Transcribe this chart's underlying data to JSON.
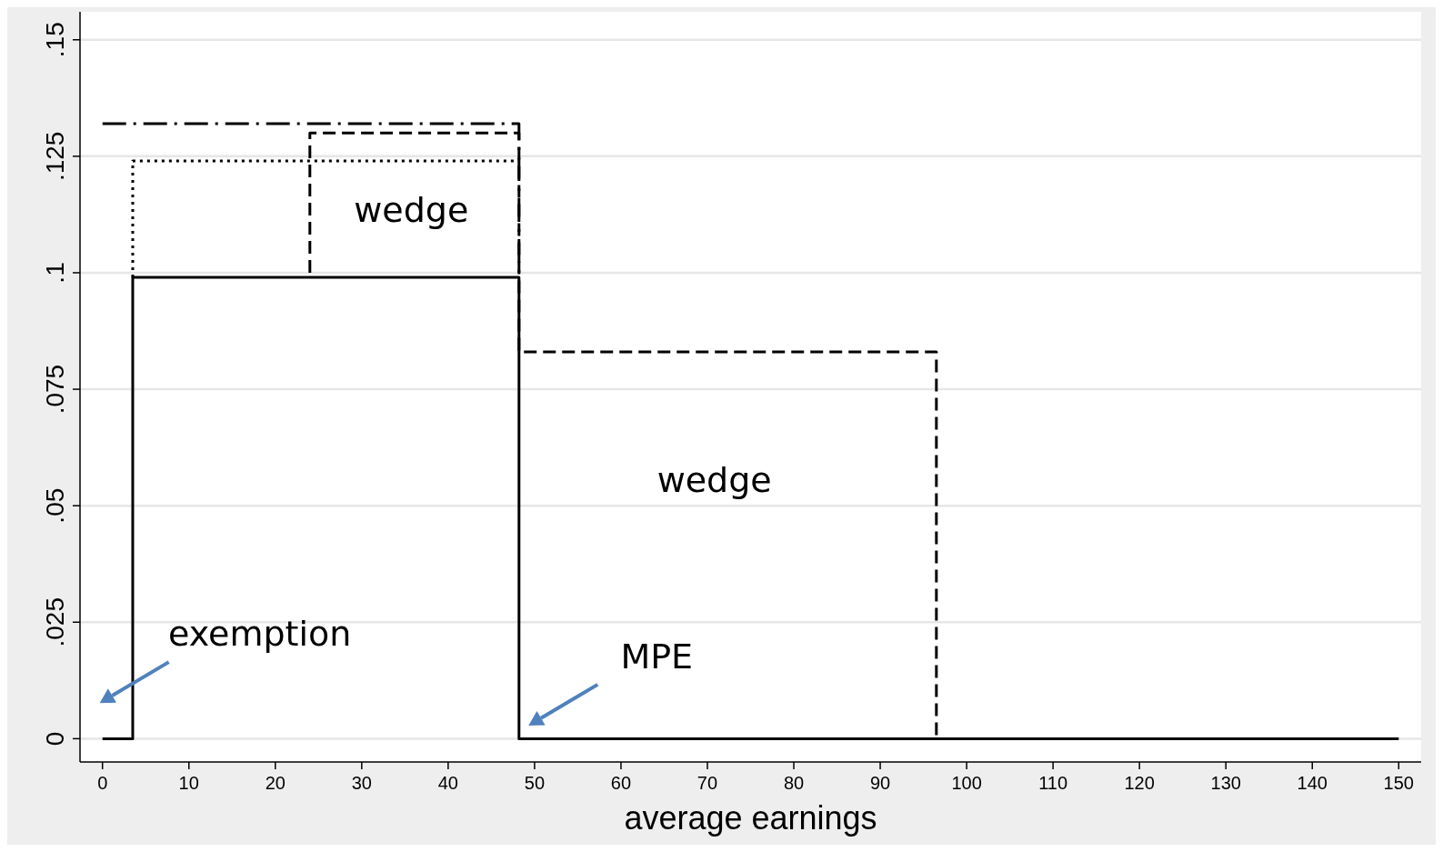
{
  "chart_data": {
    "type": "line",
    "xlabel": "average earnings",
    "xlim": [
      -2.6,
      152.6
    ],
    "ylim": [
      -0.005,
      0.156
    ],
    "xticks": [
      0,
      10,
      20,
      30,
      40,
      50,
      60,
      70,
      80,
      90,
      100,
      110,
      120,
      130,
      140,
      150
    ],
    "yticks": [
      {
        "value": 0,
        "label": "0"
      },
      {
        "value": 0.025,
        "label": ".025"
      },
      {
        "value": 0.05,
        "label": ".05"
      },
      {
        "value": 0.075,
        "label": ".075"
      },
      {
        "value": 0.1,
        "label": ".1"
      },
      {
        "value": 0.125,
        "label": ".125"
      },
      {
        "value": 0.15,
        "label": ".15"
      }
    ],
    "grid": "y",
    "series": [
      {
        "color": "#000000",
        "line_style": "solid",
        "x": [
          0,
          3.5,
          3.5,
          48.2,
          48.2,
          150
        ],
        "values": [
          0,
          0,
          0.099,
          0.099,
          0,
          0
        ]
      },
      {
        "color": "#000000",
        "line_style": "dotted",
        "x": [
          3.5,
          3.5,
          48.2
        ],
        "values": [
          0.099,
          0.124,
          0.124
        ]
      },
      {
        "color": "#000000",
        "line_style": "dashed",
        "x": [
          24,
          24,
          48.2,
          48.2,
          96.5,
          96.5
        ],
        "values": [
          0.1,
          0.13,
          0.13,
          0.083,
          0.083,
          0
        ]
      },
      {
        "color": "#000000",
        "line_style": "dashdot",
        "x": [
          0,
          48.2,
          48.2
        ],
        "values": [
          0.132,
          0.132,
          0.099
        ]
      }
    ],
    "annotations": [
      "wedge",
      "wedge",
      "exemption",
      "MPE"
    ]
  }
}
